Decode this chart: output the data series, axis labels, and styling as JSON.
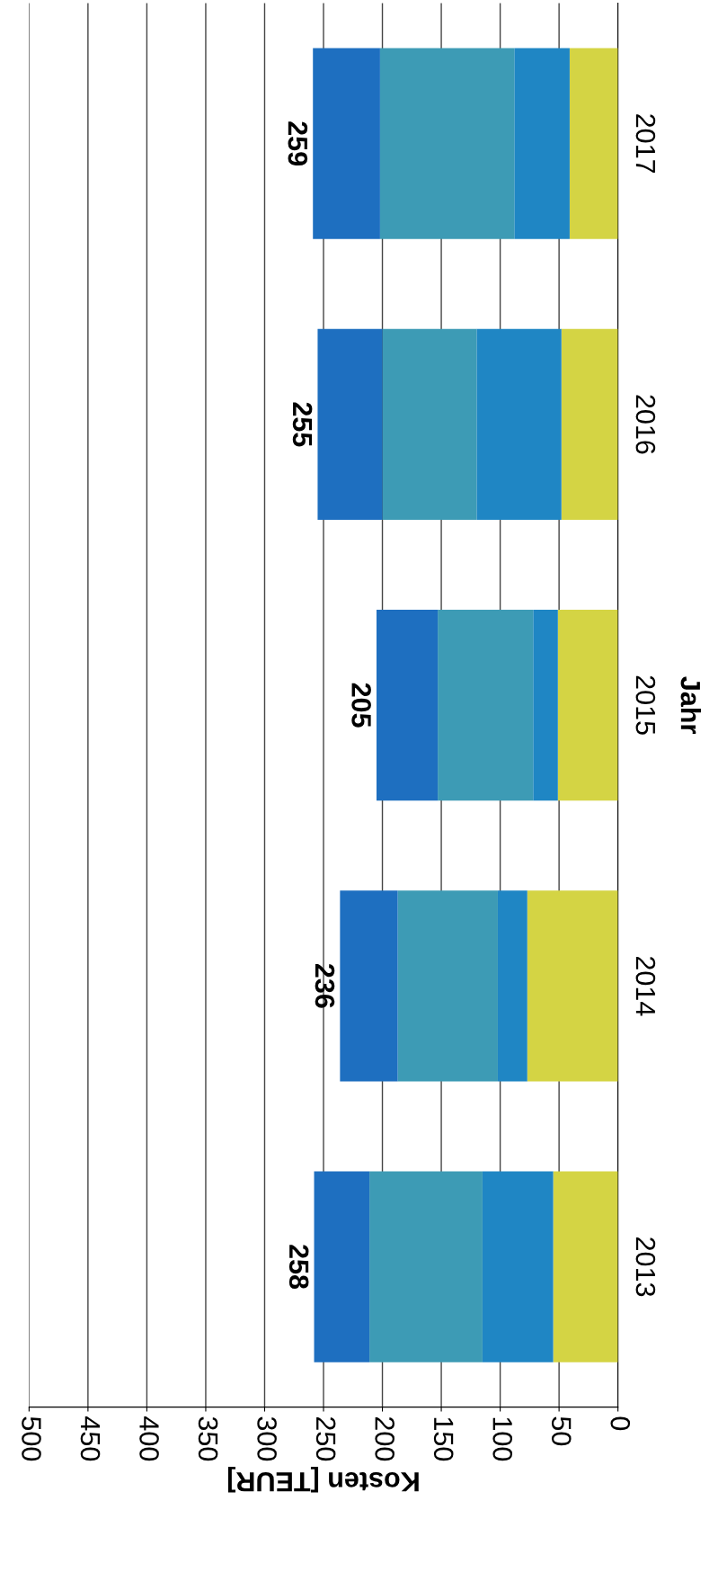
{
  "chart_data": {
    "type": "bar",
    "orientation": "horizontal",
    "stacked": true,
    "xlabel": "Kosten [TEUR]",
    "ylabel": "Jahr",
    "categories": [
      "2017",
      "2016",
      "2015",
      "2014",
      "2013"
    ],
    "series": [
      {
        "color": "#d4d444",
        "values": [
          41,
          48,
          51,
          77,
          55
        ]
      },
      {
        "color": "#1f86c4",
        "values": [
          47,
          72,
          21,
          25,
          60
        ]
      },
      {
        "color": "#3d9bb5",
        "values": [
          114,
          80,
          81,
          85,
          96
        ]
      },
      {
        "color": "#1e6fc0",
        "values": [
          57,
          55,
          52,
          49,
          47
        ]
      }
    ],
    "totals": [
      "259",
      "255",
      "205",
      "236",
      "258"
    ],
    "xlim": [
      500,
      0
    ],
    "xticks": [
      0,
      50,
      100,
      150,
      200,
      250,
      300,
      350,
      400,
      450,
      500
    ],
    "grid": "x"
  }
}
